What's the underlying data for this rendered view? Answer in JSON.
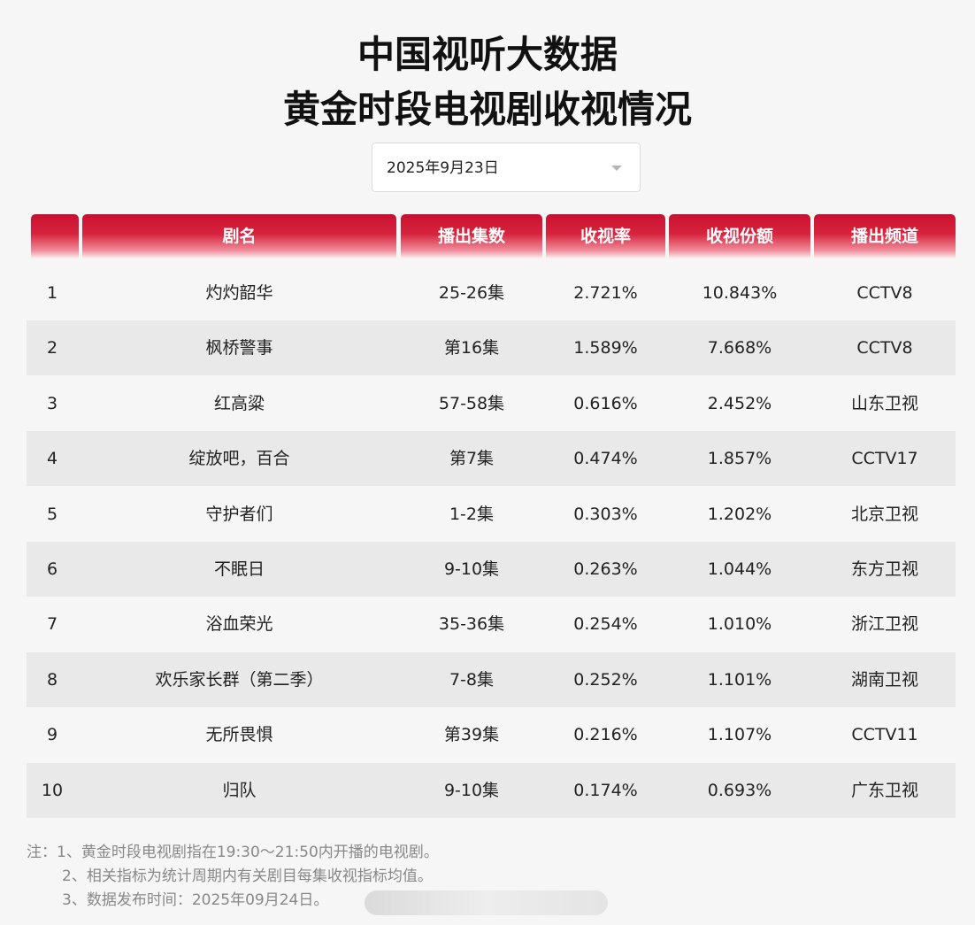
{
  "title_line1": "中国视听大数据",
  "title_line2": "黄金时段电视剧收视情况",
  "date_select": {
    "value": "2025年9月23日"
  },
  "table": {
    "headers": [
      "",
      "剧名",
      "播出集数",
      "收视率",
      "收视份额",
      "播出频道"
    ],
    "rows": [
      {
        "rank": "1",
        "name": "灼灼韶华",
        "episodes": "25-26集",
        "rating": "2.721%",
        "share": "10.843%",
        "channel": "CCTV8"
      },
      {
        "rank": "2",
        "name": "枫桥警事",
        "episodes": "第16集",
        "rating": "1.589%",
        "share": "7.668%",
        "channel": "CCTV8"
      },
      {
        "rank": "3",
        "name": "红高粱",
        "episodes": "57-58集",
        "rating": "0.616%",
        "share": "2.452%",
        "channel": "山东卫视"
      },
      {
        "rank": "4",
        "name": "绽放吧，百合",
        "episodes": "第7集",
        "rating": "0.474%",
        "share": "1.857%",
        "channel": "CCTV17"
      },
      {
        "rank": "5",
        "name": "守护者们",
        "episodes": "1-2集",
        "rating": "0.303%",
        "share": "1.202%",
        "channel": "北京卫视"
      },
      {
        "rank": "6",
        "name": "不眠日",
        "episodes": "9-10集",
        "rating": "0.263%",
        "share": "1.044%",
        "channel": "东方卫视"
      },
      {
        "rank": "7",
        "name": "浴血荣光",
        "episodes": "35-36集",
        "rating": "0.254%",
        "share": "1.010%",
        "channel": "浙江卫视"
      },
      {
        "rank": "8",
        "name": "欢乐家长群（第二季）",
        "episodes": "7-8集",
        "rating": "0.252%",
        "share": "1.101%",
        "channel": "湖南卫视"
      },
      {
        "rank": "9",
        "name": "无所畏惧",
        "episodes": "第39集",
        "rating": "0.216%",
        "share": "1.107%",
        "channel": "CCTV11"
      },
      {
        "rank": "10",
        "name": "归队",
        "episodes": "9-10集",
        "rating": "0.174%",
        "share": "0.693%",
        "channel": "广东卫视"
      }
    ]
  },
  "notes": [
    "注：1、黄金时段电视剧指在19:30～21:50内开播的电视剧。",
    "2、相关指标为统计周期内有关剧目每集收视指标均值。",
    "3、数据发布时间：2025年09月24日。"
  ],
  "colors": {
    "header_red": "#c8102e",
    "row_alt": "#e9e9e9",
    "background": "#f6f6f6"
  }
}
